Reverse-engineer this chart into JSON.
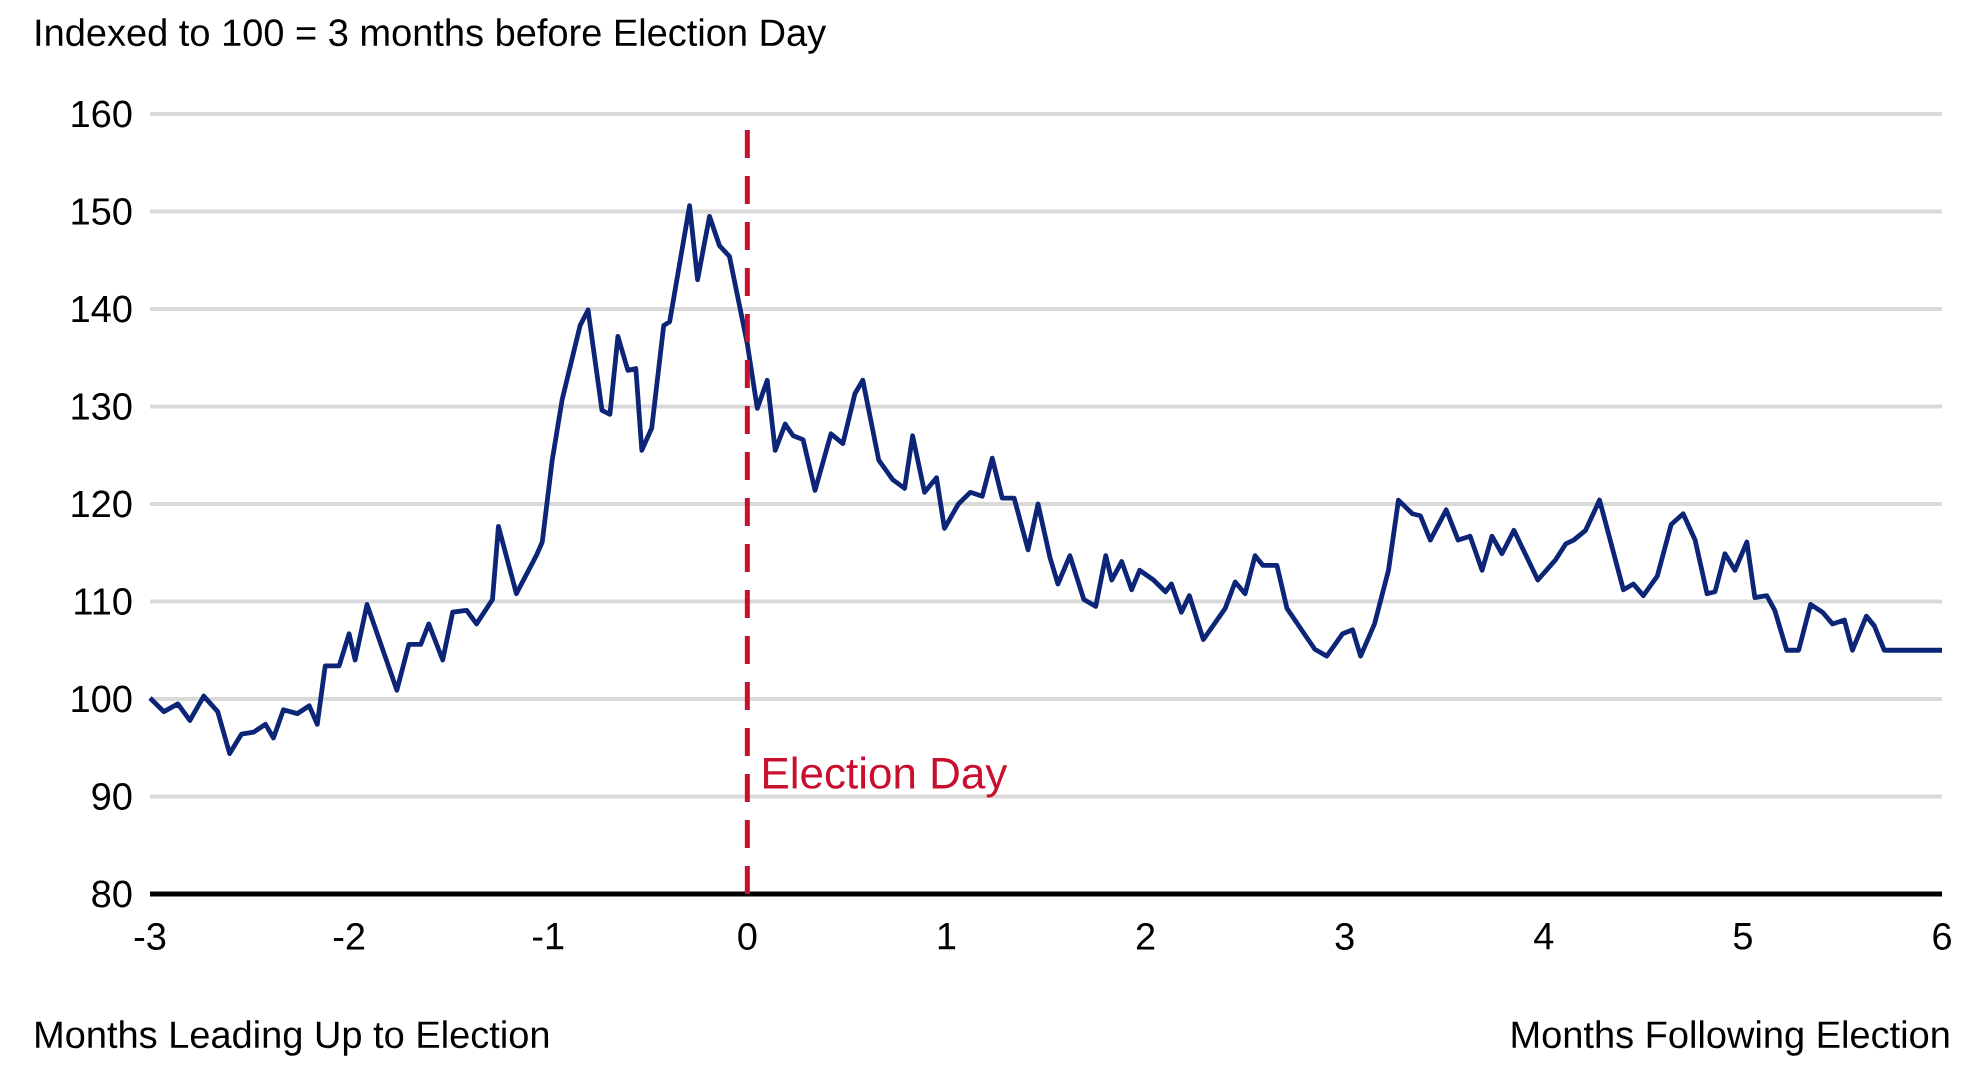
{
  "chart_data": {
    "type": "line",
    "ylabel": "Indexed to 100 = 3 months before Election Day",
    "xlabel": "Months Leading Up to Election",
    "annotations": [
      "Months Following Election"
    ],
    "x": [
      -3,
      -2.93,
      -2.86,
      -2.8,
      -2.73,
      -2.66,
      -2.6,
      -2.54,
      -2.48,
      -2.42,
      -2.38,
      -2.33,
      -2.26,
      -2.2,
      -2.16,
      -2.12,
      -2.05,
      -2.0,
      -1.97,
      -1.91,
      -1.76,
      -1.7,
      -1.64,
      -1.6,
      -1.53,
      -1.48,
      -1.41,
      -1.36,
      -1.28,
      -1.25,
      -1.16,
      -1.06,
      -1.03,
      -0.98,
      -0.93,
      -0.84,
      -0.8,
      -0.73,
      -0.69,
      -0.65,
      -0.6,
      -0.56,
      -0.53,
      -0.48,
      -0.42,
      -0.39,
      -0.29,
      -0.25,
      -0.19,
      -0.14,
      -0.09,
      0,
      0.05,
      0.1,
      0.14,
      0.19,
      0.23,
      0.28,
      0.34,
      0.42,
      0.48,
      0.54,
      0.58,
      0.66,
      0.73,
      0.79,
      0.83,
      0.89,
      0.95,
      0.99,
      1.06,
      1.12,
      1.18,
      1.23,
      1.28,
      1.34,
      1.41,
      1.46,
      1.52,
      1.56,
      1.62,
      1.69,
      1.75,
      1.8,
      1.83,
      1.88,
      1.93,
      1.97,
      2.04,
      2.1,
      2.13,
      2.18,
      2.22,
      2.29,
      2.4,
      2.45,
      2.5,
      2.55,
      2.59,
      2.66,
      2.71,
      2.85,
      2.91,
      2.99,
      3.04,
      3.08,
      3.15,
      3.22,
      3.27,
      3.34,
      3.38,
      3.43,
      3.51,
      3.57,
      3.63,
      3.69,
      3.74,
      3.79,
      3.85,
      3.97,
      4.06,
      4.11,
      4.15,
      4.21,
      4.28,
      4.4,
      4.45,
      4.5,
      4.57,
      4.64,
      4.7,
      4.76,
      4.82,
      4.86,
      4.91,
      4.96,
      5.02,
      5.06,
      5.12,
      5.16,
      5.22,
      5.28,
      5.34,
      5.4,
      5.45,
      5.51,
      5.55,
      5.62,
      5.66,
      5.71,
      5.79,
      6
    ],
    "series": [
      {
        "color": "#0c2577",
        "values": [
          100.1,
          98.7,
          99.5,
          97.8,
          100.3,
          98.7,
          94.4,
          96.4,
          96.6,
          97.4,
          96,
          98.9,
          98.5,
          99.3,
          97.4,
          103.4,
          103.4,
          106.7,
          104,
          109.7,
          100.9,
          105.6,
          105.6,
          107.7,
          104,
          108.9,
          109.1,
          107.7,
          110.2,
          117.7,
          110.8,
          114.7,
          116.1,
          124.5,
          130.7,
          138.3,
          139.9,
          129.6,
          129.2,
          137.2,
          133.7,
          133.9,
          125.5,
          127.8,
          138.3,
          138.7,
          150.6,
          143,
          149.5,
          146.5,
          145.4,
          136.4,
          129.8,
          132.7,
          125.5,
          128.2,
          127,
          126.6,
          121.4,
          127.2,
          126.2,
          131.3,
          132.7,
          124.5,
          122.5,
          121.6,
          127,
          121.2,
          122.7,
          117.5,
          120,
          121.2,
          120.8,
          124.7,
          120.6,
          120.6,
          115.3,
          120,
          114.5,
          111.8,
          114.7,
          110.2,
          109.5,
          114.7,
          112.2,
          114.1,
          111.2,
          113.2,
          112.2,
          111,
          111.8,
          108.9,
          110.6,
          106.1,
          109.3,
          112,
          110.8,
          114.7,
          113.7,
          113.7,
          109.3,
          105.1,
          104.4,
          106.7,
          107.1,
          104.4,
          107.7,
          113.2,
          120.4,
          119,
          118.8,
          116.3,
          119.4,
          116.3,
          116.7,
          113.2,
          116.7,
          114.9,
          117.3,
          112.2,
          114.3,
          115.9,
          116.3,
          117.3,
          120.4,
          111.2,
          111.8,
          110.6,
          112.6,
          117.9,
          119,
          116.3,
          110.8,
          111,
          114.9,
          113.2,
          116.1,
          110.4,
          110.6,
          109.1,
          105,
          105,
          109.7,
          108.9,
          107.7,
          108.1,
          105,
          108.5,
          107.5,
          105,
          105,
          105
        ]
      }
    ],
    "xlim": [
      -3,
      6
    ],
    "ylim": [
      80,
      160
    ],
    "xticks": [
      -3,
      -2,
      -1,
      0,
      1,
      2,
      3,
      4,
      5,
      6
    ],
    "yticks": [
      80,
      90,
      100,
      110,
      120,
      130,
      140,
      150,
      160
    ],
    "grid": "y",
    "line_style": "solid",
    "ref_lines": [
      {
        "axis": "x",
        "value": 0,
        "label": "Election Day",
        "color": "#c8102e",
        "line_style": "dashed"
      }
    ]
  }
}
